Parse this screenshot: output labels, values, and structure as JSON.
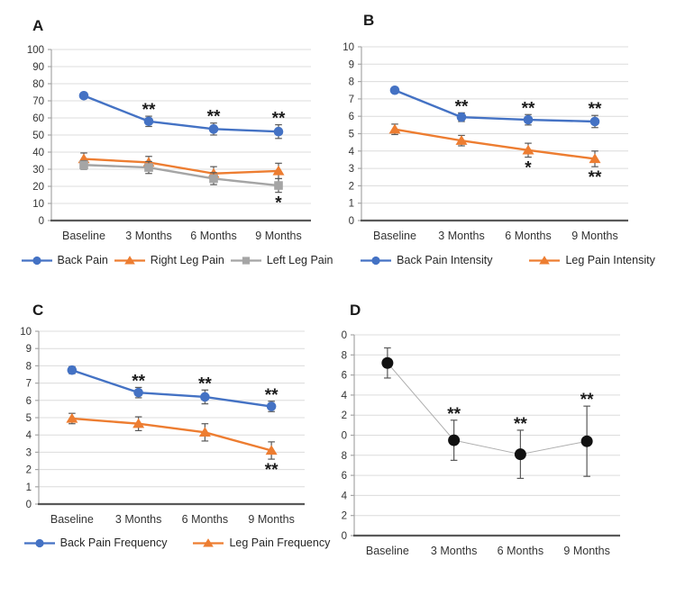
{
  "figure": {
    "background": "#ffffff",
    "panel_labels": [
      "A",
      "B",
      "C",
      "D"
    ]
  },
  "colors": {
    "blue": "#4472C4",
    "orange": "#ED7D31",
    "gray": "#A5A5A5",
    "black": "#111111",
    "thin_gray": "#ADADAD",
    "grid": "#DCDCDC",
    "y_axis": "#A6A6A6",
    "x_axis": "#595959",
    "error_bar": "#595959",
    "tick_text": "#333333",
    "star": "#1a1a1a"
  },
  "chart_data": [
    {
      "panel": "A",
      "type": "line",
      "title": "",
      "xlabel": "",
      "ylabel": "",
      "categories": [
        "Baseline",
        "3 Months",
        "6 Months",
        "9 Months"
      ],
      "ylim": [
        0,
        100
      ],
      "ytick_step": 10,
      "grid": true,
      "legend_position": "bottom",
      "series": [
        {
          "name": "Back Pain",
          "color_key": "blue",
          "marker": "circle",
          "values": [
            73,
            58,
            53.5,
            52
          ],
          "errors": [
            1.5,
            3,
            3.5,
            4
          ],
          "sig": [
            "",
            "**",
            "**",
            "**"
          ],
          "sig_side": "above"
        },
        {
          "name": "Right Leg Pain",
          "color_key": "orange",
          "marker": "triangle",
          "values": [
            36,
            34,
            27.5,
            29
          ],
          "errors": [
            3.5,
            3.5,
            4,
            4.5
          ],
          "sig": [
            "",
            "",
            "",
            ""
          ],
          "sig_side": "below"
        },
        {
          "name": "Left Leg Pain",
          "color_key": "gray",
          "marker": "square",
          "values": [
            32.5,
            31,
            24.5,
            20.5
          ],
          "errors": [
            2.5,
            3.5,
            3.5,
            4
          ],
          "sig": [
            "",
            "",
            "",
            "*"
          ],
          "sig_side": "below"
        }
      ]
    },
    {
      "panel": "B",
      "type": "line",
      "title": "",
      "xlabel": "",
      "ylabel": "",
      "categories": [
        "Baseline",
        "3 Months",
        "6 Months",
        "9 Months"
      ],
      "ylim": [
        0,
        10
      ],
      "ytick_step": 1,
      "grid": true,
      "legend_position": "bottom",
      "series": [
        {
          "name": "Back Pain Intensity",
          "color_key": "blue",
          "marker": "circle",
          "values": [
            7.5,
            5.95,
            5.8,
            5.7
          ],
          "errors": [
            0.15,
            0.25,
            0.3,
            0.35
          ],
          "sig": [
            "",
            "**",
            "**",
            "**"
          ],
          "sig_side": "above"
        },
        {
          "name": "Leg Pain Intensity",
          "color_key": "orange",
          "marker": "triangle",
          "values": [
            5.25,
            4.6,
            4.05,
            3.55
          ],
          "errors": [
            0.3,
            0.3,
            0.4,
            0.45
          ],
          "sig": [
            "",
            "",
            "*",
            "**"
          ],
          "sig_side": "below"
        }
      ]
    },
    {
      "panel": "C",
      "type": "line",
      "title": "",
      "xlabel": "",
      "ylabel": "",
      "categories": [
        "Baseline",
        "3 Months",
        "6 Months",
        "9 Months"
      ],
      "ylim": [
        0,
        10
      ],
      "ytick_step": 1,
      "grid": true,
      "legend_position": "bottom",
      "series": [
        {
          "name": "Back Pain Frequency",
          "color_key": "blue",
          "marker": "circle",
          "values": [
            7.75,
            6.45,
            6.2,
            5.65
          ],
          "errors": [
            0.2,
            0.3,
            0.4,
            0.3
          ],
          "sig": [
            "",
            "**",
            "**",
            "**"
          ],
          "sig_side": "above"
        },
        {
          "name": "Leg Pain Frequency",
          "color_key": "orange",
          "marker": "triangle",
          "values": [
            4.95,
            4.65,
            4.15,
            3.1
          ],
          "errors": [
            0.3,
            0.4,
            0.5,
            0.5
          ],
          "sig": [
            "",
            "",
            "",
            "**"
          ],
          "sig_side": "below"
        }
      ]
    },
    {
      "panel": "D",
      "type": "line",
      "title": "",
      "xlabel": "",
      "ylabel": "",
      "categories": [
        "Baseline",
        "3 Months",
        "6 Months",
        "9 Months"
      ],
      "ylim": [
        30,
        50
      ],
      "ytick_step": 2,
      "grid": true,
      "legend_position": "none",
      "series": [
        {
          "name": "",
          "color_key": "black",
          "line_color_key": "thin_gray",
          "line_width": 1,
          "marker": "circle",
          "marker_size": 6.5,
          "values": [
            47.2,
            39.5,
            38.1,
            39.4
          ],
          "errors": [
            1.5,
            2,
            2.4,
            3.5
          ],
          "sig": [
            "",
            "**",
            "**",
            "**"
          ],
          "sig_side": "above"
        }
      ]
    }
  ]
}
